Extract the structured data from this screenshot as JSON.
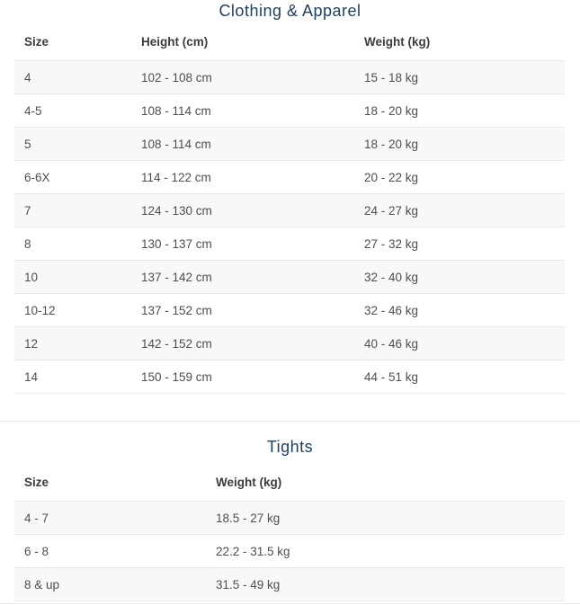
{
  "colors": {
    "title": "#1f3e5e",
    "header_text": "#3c3c3c",
    "cell_text": "#4e4e4e",
    "stripe_bg": "#f8f8f8",
    "row_border": "#e7e7e7",
    "page_bg": "#ffffff"
  },
  "sections": [
    {
      "title": "Clothing & Apparel",
      "columns": [
        "Size",
        "Height (cm)",
        "Weight (kg)"
      ],
      "rows": [
        [
          "4",
          "102 - 108 cm",
          "15 - 18 kg"
        ],
        [
          "4-5",
          "108 - 114 cm",
          "18 - 20 kg"
        ],
        [
          "5",
          "108 - 114 cm",
          "18 - 20 kg"
        ],
        [
          "6-6X",
          "114 - 122 cm",
          "20 - 22 kg"
        ],
        [
          "7",
          "124 - 130 cm",
          "24 - 27 kg"
        ],
        [
          "8",
          "130 - 137 cm",
          "27 - 32 kg"
        ],
        [
          "10",
          "137 - 142 cm",
          "32 - 40 kg"
        ],
        [
          "10-12",
          "137 - 152 cm",
          "32 - 46 kg"
        ],
        [
          "12",
          "142 - 152 cm",
          "40 - 46 kg"
        ],
        [
          "14",
          "150 - 159 cm",
          "44 - 51 kg"
        ]
      ]
    },
    {
      "title": "Tights",
      "columns": [
        "Size",
        "Weight (kg)"
      ],
      "rows": [
        [
          "4 - 7",
          "18.5 - 27 kg"
        ],
        [
          "6 - 8",
          "22.2 - 31.5 kg"
        ],
        [
          "8 & up",
          "31.5 - 49 kg"
        ]
      ]
    }
  ]
}
